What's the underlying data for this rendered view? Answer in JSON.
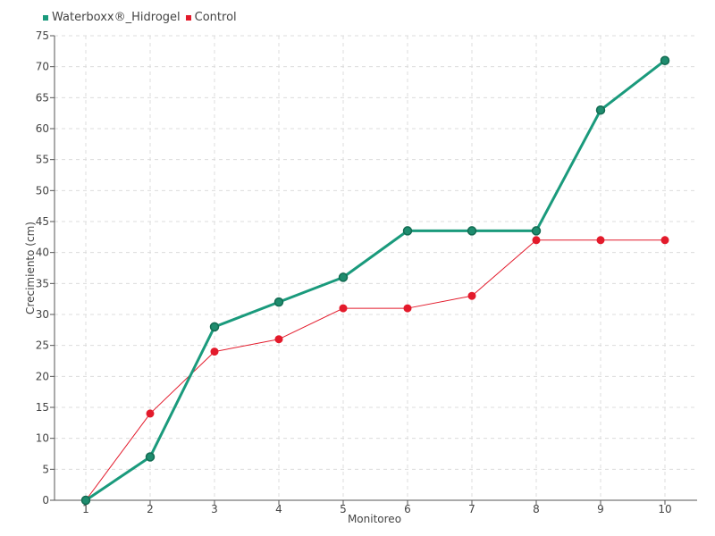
{
  "chart_data": {
    "type": "line",
    "title": "",
    "xlabel": "Monitoreo",
    "ylabel": "Crecimiento (cm)",
    "categories": [
      "1",
      "2",
      "3",
      "4",
      "5",
      "6",
      "7",
      "8",
      "9",
      "10"
    ],
    "ylim": [
      0,
      75
    ],
    "yticks": [
      0,
      5,
      10,
      15,
      20,
      25,
      30,
      35,
      40,
      45,
      50,
      55,
      60,
      65,
      70,
      75
    ],
    "grid": true,
    "legend_position": "top-left",
    "series": [
      {
        "name": "Waterboxx®_Hidrogel",
        "color": "#1a9a7c",
        "values": [
          0,
          7,
          28,
          32,
          36,
          43.5,
          43.5,
          43.5,
          63,
          71
        ]
      },
      {
        "name": "Control",
        "color": "#e31a2b",
        "values": [
          0,
          14,
          24,
          26,
          31,
          31,
          33,
          42,
          42,
          42
        ]
      }
    ]
  }
}
